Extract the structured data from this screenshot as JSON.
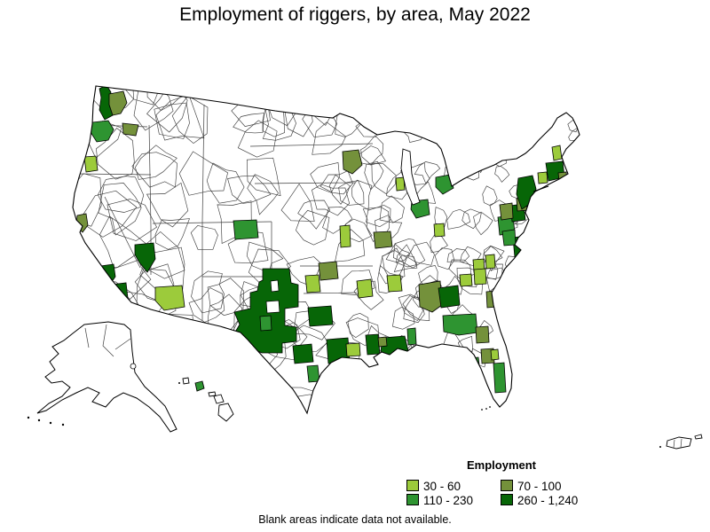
{
  "title": "Employment of riggers, by area, May 2022",
  "legend": {
    "title": "Employment",
    "items": [
      {
        "label": "30 - 60",
        "color": "#9CCB3B"
      },
      {
        "label": "70 - 100",
        "color": "#74913B"
      },
      {
        "label": "110 - 230",
        "color": "#2E9431"
      },
      {
        "label": "260 - 1,240",
        "color": "#076607"
      }
    ]
  },
  "footnote": "Blank areas indicate data not available.",
  "map": {
    "background": "#FFFFFF",
    "area_fill": "#FFFFFF",
    "outline_color": "#000000",
    "boundary_color": "#3D3D3D"
  }
}
